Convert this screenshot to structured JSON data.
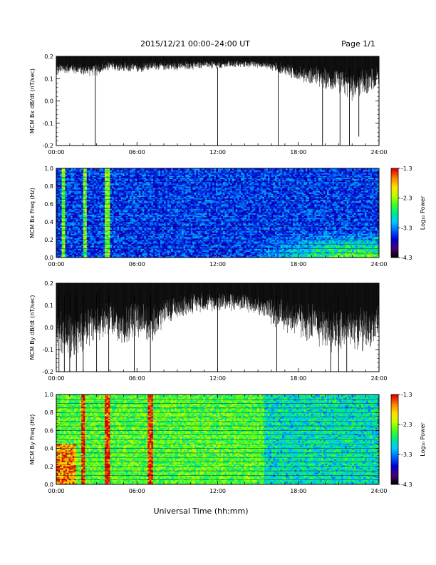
{
  "header": {
    "title": "2015/12/21   00:00–24:00 UT",
    "page": "Page 1/1"
  },
  "xlabel": "Universal Time (hh:mm)",
  "xticks": [
    "00:00",
    "06:00",
    "12:00",
    "18:00",
    "24:00"
  ],
  "colorbar_colors": [
    "#000000",
    "#4a007a",
    "#0000d0",
    "#0060ff",
    "#00c8ff",
    "#00e890",
    "#40ff20",
    "#c0ff00",
    "#ffe000",
    "#ff8000",
    "#e00000"
  ],
  "chart_data": [
    {
      "type": "line",
      "ylabel": "MCM Bx dB/dt (nT/sec)",
      "ylim": [
        -0.2,
        0.2
      ],
      "yticks": [
        "0.2",
        "0.1",
        "0.0",
        "-0.1",
        "-0.2"
      ],
      "xlim_hours": [
        0,
        24
      ],
      "series": [
        {
          "style": "dense-oscillation",
          "upper_envelope": [
            0.2,
            0.2
          ],
          "lower_envelope_x_hours": [
            0,
            1,
            2,
            3,
            4,
            5,
            6,
            7,
            8,
            9,
            10,
            11,
            12,
            13,
            14,
            15,
            16,
            17,
            18,
            19,
            20,
            21,
            22,
            23,
            24
          ],
          "lower_envelope": [
            0.13,
            0.14,
            0.13,
            0.13,
            0.15,
            0.14,
            0.14,
            0.15,
            0.15,
            0.15,
            0.15,
            0.16,
            0.15,
            0.16,
            0.16,
            0.16,
            0.15,
            0.13,
            0.11,
            0.1,
            0.08,
            0.07,
            0.04,
            0.06,
            0.09
          ],
          "spikes_hours": [
            2.9,
            12.0,
            16.5,
            19.8,
            21.1,
            21.8,
            22.5
          ],
          "spike_minima": [
            -0.2,
            -0.2,
            -0.2,
            -0.2,
            -0.2,
            -0.2,
            -0.16
          ]
        }
      ]
    },
    {
      "type": "heatmap",
      "ylabel": "MCM Bx Freq (Hz)",
      "ylim": [
        0.0,
        1.0
      ],
      "yticks": [
        "1.0",
        "0.8",
        "0.6",
        "0.4",
        "0.2",
        "0.0"
      ],
      "xlim_hours": [
        0,
        24
      ],
      "colorbar": {
        "label": "Log₁₀ Power",
        "ticks": [
          "-1.3",
          "-2.3",
          "-3.3",
          "-4.3"
        ],
        "range": [
          -4.3,
          -1.3
        ]
      },
      "background_level": -3.5,
      "bright_columns_hours": [
        0.5,
        2.1,
        3.8
      ],
      "activity_region": {
        "start_hours": 14.5,
        "end_hours": 24,
        "max_freq_hz": 0.3,
        "peak_level": -2.3
      },
      "grid_lines_hz": [
        0.05,
        0.1,
        0.15,
        0.2,
        0.25,
        0.3,
        0.35,
        0.4,
        0.45,
        0.5,
        0.55,
        0.6,
        0.65,
        0.7,
        0.75,
        0.8,
        0.85,
        0.9,
        0.95
      ]
    },
    {
      "type": "line",
      "ylabel": "MCM By dB/dt (nT/sec)",
      "ylim": [
        -0.2,
        0.2
      ],
      "yticks": [
        "0.2",
        "0.1",
        "0.0",
        "-0.1",
        "-0.2"
      ],
      "xlim_hours": [
        0,
        24
      ],
      "series": [
        {
          "style": "dense-oscillation",
          "upper_envelope": [
            0.2,
            0.2
          ],
          "lower_envelope_x_hours": [
            0,
            1,
            2,
            3,
            4,
            5,
            6,
            7,
            8,
            9,
            10,
            11,
            12,
            13,
            14,
            15,
            16,
            17,
            18,
            19,
            20,
            21,
            22,
            23,
            24
          ],
          "lower_envelope": [
            -0.05,
            -0.08,
            -0.05,
            -0.02,
            0.0,
            -0.03,
            0.0,
            -0.02,
            0.04,
            0.07,
            0.09,
            0.1,
            0.1,
            0.1,
            0.1,
            0.08,
            0.05,
            0.02,
            0.0,
            -0.02,
            -0.04,
            -0.06,
            -0.03,
            -0.05,
            0.0
          ],
          "spikes_hours": [
            0.2,
            0.6,
            1.0,
            1.5,
            2.0,
            3.0,
            3.9,
            5.8,
            7.0,
            12.0,
            16.4,
            20.4,
            21.0,
            21.6
          ],
          "spike_minima": [
            -0.2,
            -0.2,
            -0.2,
            -0.2,
            -0.2,
            -0.2,
            -0.2,
            -0.2,
            -0.2,
            -0.2,
            -0.2,
            -0.2,
            -0.2,
            -0.2
          ]
        }
      ]
    },
    {
      "type": "heatmap",
      "ylabel": "MCM By Freq (Hz)",
      "ylim": [
        0.0,
        1.0
      ],
      "yticks": [
        "1.0",
        "0.8",
        "0.6",
        "0.4",
        "0.2",
        "0.0"
      ],
      "xlim_hours": [
        0,
        24
      ],
      "colorbar": {
        "label": "Log₁₀ Power",
        "ticks": [
          "-1.3",
          "-2.3",
          "-3.3",
          "-4.3"
        ],
        "range": [
          -4.3,
          -1.3
        ]
      },
      "background_level": -2.5,
      "hot_region": {
        "start_hours": 0,
        "end_hours": 1.5,
        "max_freq_hz": 0.45,
        "peak_level": -1.5
      },
      "bright_columns_hours": [
        2.0,
        3.8,
        7.0
      ],
      "quiet_region": {
        "start_hours": 15.5,
        "end_hours": 24,
        "level": -3.0
      },
      "grid_lines_hz": [
        0.05,
        0.1,
        0.15,
        0.2,
        0.25,
        0.3,
        0.35,
        0.4,
        0.45,
        0.5,
        0.55,
        0.6,
        0.65,
        0.7,
        0.75,
        0.8,
        0.85,
        0.9,
        0.95
      ]
    }
  ]
}
